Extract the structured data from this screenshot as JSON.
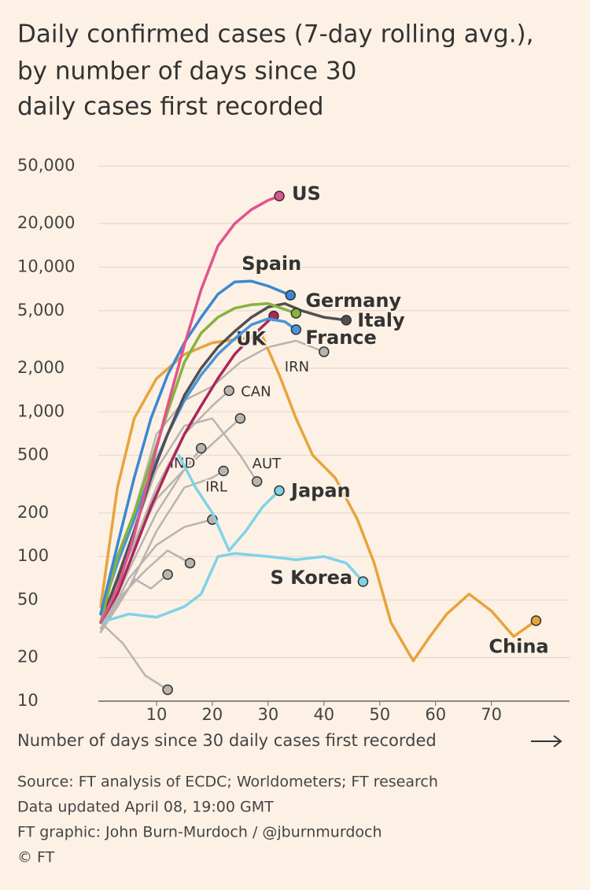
{
  "chart_data": {
    "type": "line",
    "title": [
      "Daily confirmed cases (7-day rolling avg.),",
      "by number of days since 30",
      "daily cases first recorded"
    ],
    "x_label": "Number of days since 30 daily cases first recorded",
    "source": [
      "Source: FT analysis of ECDC; Worldometers; FT research",
      "Data updated April 08, 19:00 GMT",
      "FT graphic: John Burn-Murdoch / @jburnmurdoch",
      "© FT"
    ],
    "log_y": true,
    "grid": true,
    "xlim": [
      0,
      84
    ],
    "ylim": [
      10,
      50000
    ],
    "xticks": [
      10,
      20,
      30,
      40,
      50,
      60,
      70
    ],
    "yticks": [
      10,
      20,
      50,
      100,
      200,
      500,
      {
        "value": 1000,
        "label": "1,000"
      },
      {
        "value": 2000,
        "label": "2,000"
      },
      {
        "value": 5000,
        "label": "5,000"
      },
      {
        "value": 10000,
        "label": "10,000"
      },
      {
        "value": 20000,
        "label": "20,000"
      },
      {
        "value": 50000,
        "label": "50,000"
      }
    ],
    "other_color": "#b8b4b0",
    "other_series": [
      {
        "x": [
          0,
          4,
          8,
          12
        ],
        "values": [
          35,
          25,
          15,
          12
        ]
      },
      {
        "x": [
          0,
          5,
          10,
          15,
          20
        ],
        "values": [
          30,
          70,
          120,
          160,
          180
        ]
      },
      {
        "x": [
          0,
          5,
          10,
          15,
          20,
          25
        ],
        "values": [
          35,
          100,
          250,
          400,
          600,
          900
        ]
      },
      {
        "x": [
          0,
          4,
          8,
          12,
          16
        ],
        "values": [
          32,
          55,
          80,
          110,
          90
        ]
      },
      {
        "x": [
          0,
          3,
          6,
          9,
          12
        ],
        "values": [
          30,
          45,
          70,
          60,
          75
        ]
      }
    ],
    "series": [
      {
        "name": "IRN",
        "color": "#b8b4b0",
        "x": [
          0,
          5,
          10,
          15,
          20,
          25,
          30,
          35,
          40
        ],
        "values": [
          40,
          150,
          700,
          1200,
          1500,
          2200,
          2800,
          3100,
          2600
        ]
      },
      {
        "name": "CAN",
        "color": "#b8b4b0",
        "x": [
          0,
          5,
          10,
          15,
          20,
          23
        ],
        "values": [
          30,
          100,
          300,
          700,
          1100,
          1400
        ]
      },
      {
        "name": "IND",
        "color": "#b8b4b0",
        "x": [
          0,
          5,
          10,
          15,
          18
        ],
        "values": [
          30,
          80,
          200,
          400,
          560
        ]
      },
      {
        "name": "AUT",
        "color": "#b8b4b0",
        "x": [
          0,
          5,
          10,
          15,
          20,
          25,
          28
        ],
        "values": [
          35,
          120,
          400,
          800,
          900,
          500,
          330
        ]
      },
      {
        "name": "IRL",
        "color": "#b8b4b0",
        "x": [
          0,
          5,
          10,
          15,
          20,
          22
        ],
        "values": [
          30,
          60,
          150,
          300,
          350,
          390
        ]
      },
      {
        "name": "China",
        "color": "#e8a33c",
        "x": [
          0,
          3,
          6,
          10,
          15,
          20,
          25,
          29,
          32,
          35,
          38,
          42,
          46,
          49,
          52,
          56,
          59,
          62,
          66,
          70,
          74,
          78
        ],
        "values": [
          45,
          300,
          900,
          1700,
          2500,
          3000,
          3200,
          3300,
          1800,
          900,
          500,
          350,
          180,
          90,
          35,
          19,
          28,
          40,
          55,
          42,
          28,
          36
        ]
      },
      {
        "name": "S Korea",
        "color": "#7fd3e8",
        "x": [
          0,
          5,
          10,
          15,
          18,
          21,
          24,
          30,
          35,
          40,
          44,
          47
        ],
        "values": [
          35,
          40,
          38,
          45,
          55,
          100,
          105,
          100,
          95,
          100,
          90,
          67
        ]
      },
      {
        "name": "Japan",
        "color": "#7fd3e8",
        "x": [
          14,
          17,
          20,
          23,
          26,
          29,
          32
        ],
        "values": [
          500,
          300,
          200,
          110,
          150,
          220,
          285
        ]
      },
      {
        "name": "UK",
        "color": "#a8285c",
        "x": [
          0,
          3,
          6,
          9,
          12,
          15,
          18,
          21,
          24,
          27,
          31
        ],
        "values": [
          35,
          55,
          110,
          220,
          400,
          700,
          1100,
          1700,
          2500,
          3300,
          4600
        ]
      },
      {
        "name": "France",
        "color": "#4b93dc",
        "x": [
          0,
          3,
          6,
          9,
          12,
          15,
          18,
          21,
          24,
          27,
          30,
          33,
          35
        ],
        "values": [
          40,
          90,
          180,
          380,
          700,
          1200,
          1800,
          2500,
          3200,
          4000,
          4400,
          4200,
          3700
        ]
      },
      {
        "name": "Italy",
        "color": "#505050",
        "x": [
          0,
          3,
          6,
          9,
          12,
          15,
          18,
          21,
          24,
          27,
          30,
          33,
          36,
          40,
          44
        ],
        "values": [
          35,
          70,
          150,
          350,
          700,
          1300,
          2000,
          2800,
          3600,
          4500,
          5300,
          5600,
          5000,
          4500,
          4300
        ]
      },
      {
        "name": "Germany",
        "color": "#86b33d",
        "x": [
          0,
          3,
          6,
          9,
          12,
          15,
          18,
          21,
          24,
          27,
          30,
          35
        ],
        "values": [
          35,
          100,
          200,
          450,
          1000,
          2200,
          3500,
          4500,
          5200,
          5500,
          5600,
          4800
        ]
      },
      {
        "name": "Spain",
        "color": "#3a88d2",
        "x": [
          0,
          3,
          6,
          9,
          12,
          15,
          18,
          21,
          24,
          27,
          30,
          34
        ],
        "values": [
          40,
          120,
          350,
          900,
          1800,
          3000,
          4500,
          6500,
          7900,
          8000,
          7400,
          6400
        ]
      },
      {
        "name": "US",
        "color": "#e0548c",
        "x": [
          0,
          3,
          6,
          9,
          12,
          15,
          18,
          21,
          24,
          27,
          30,
          32
        ],
        "values": [
          35,
          60,
          140,
          400,
          1100,
          2900,
          7000,
          14000,
          20000,
          25000,
          29000,
          31000
        ]
      }
    ]
  }
}
